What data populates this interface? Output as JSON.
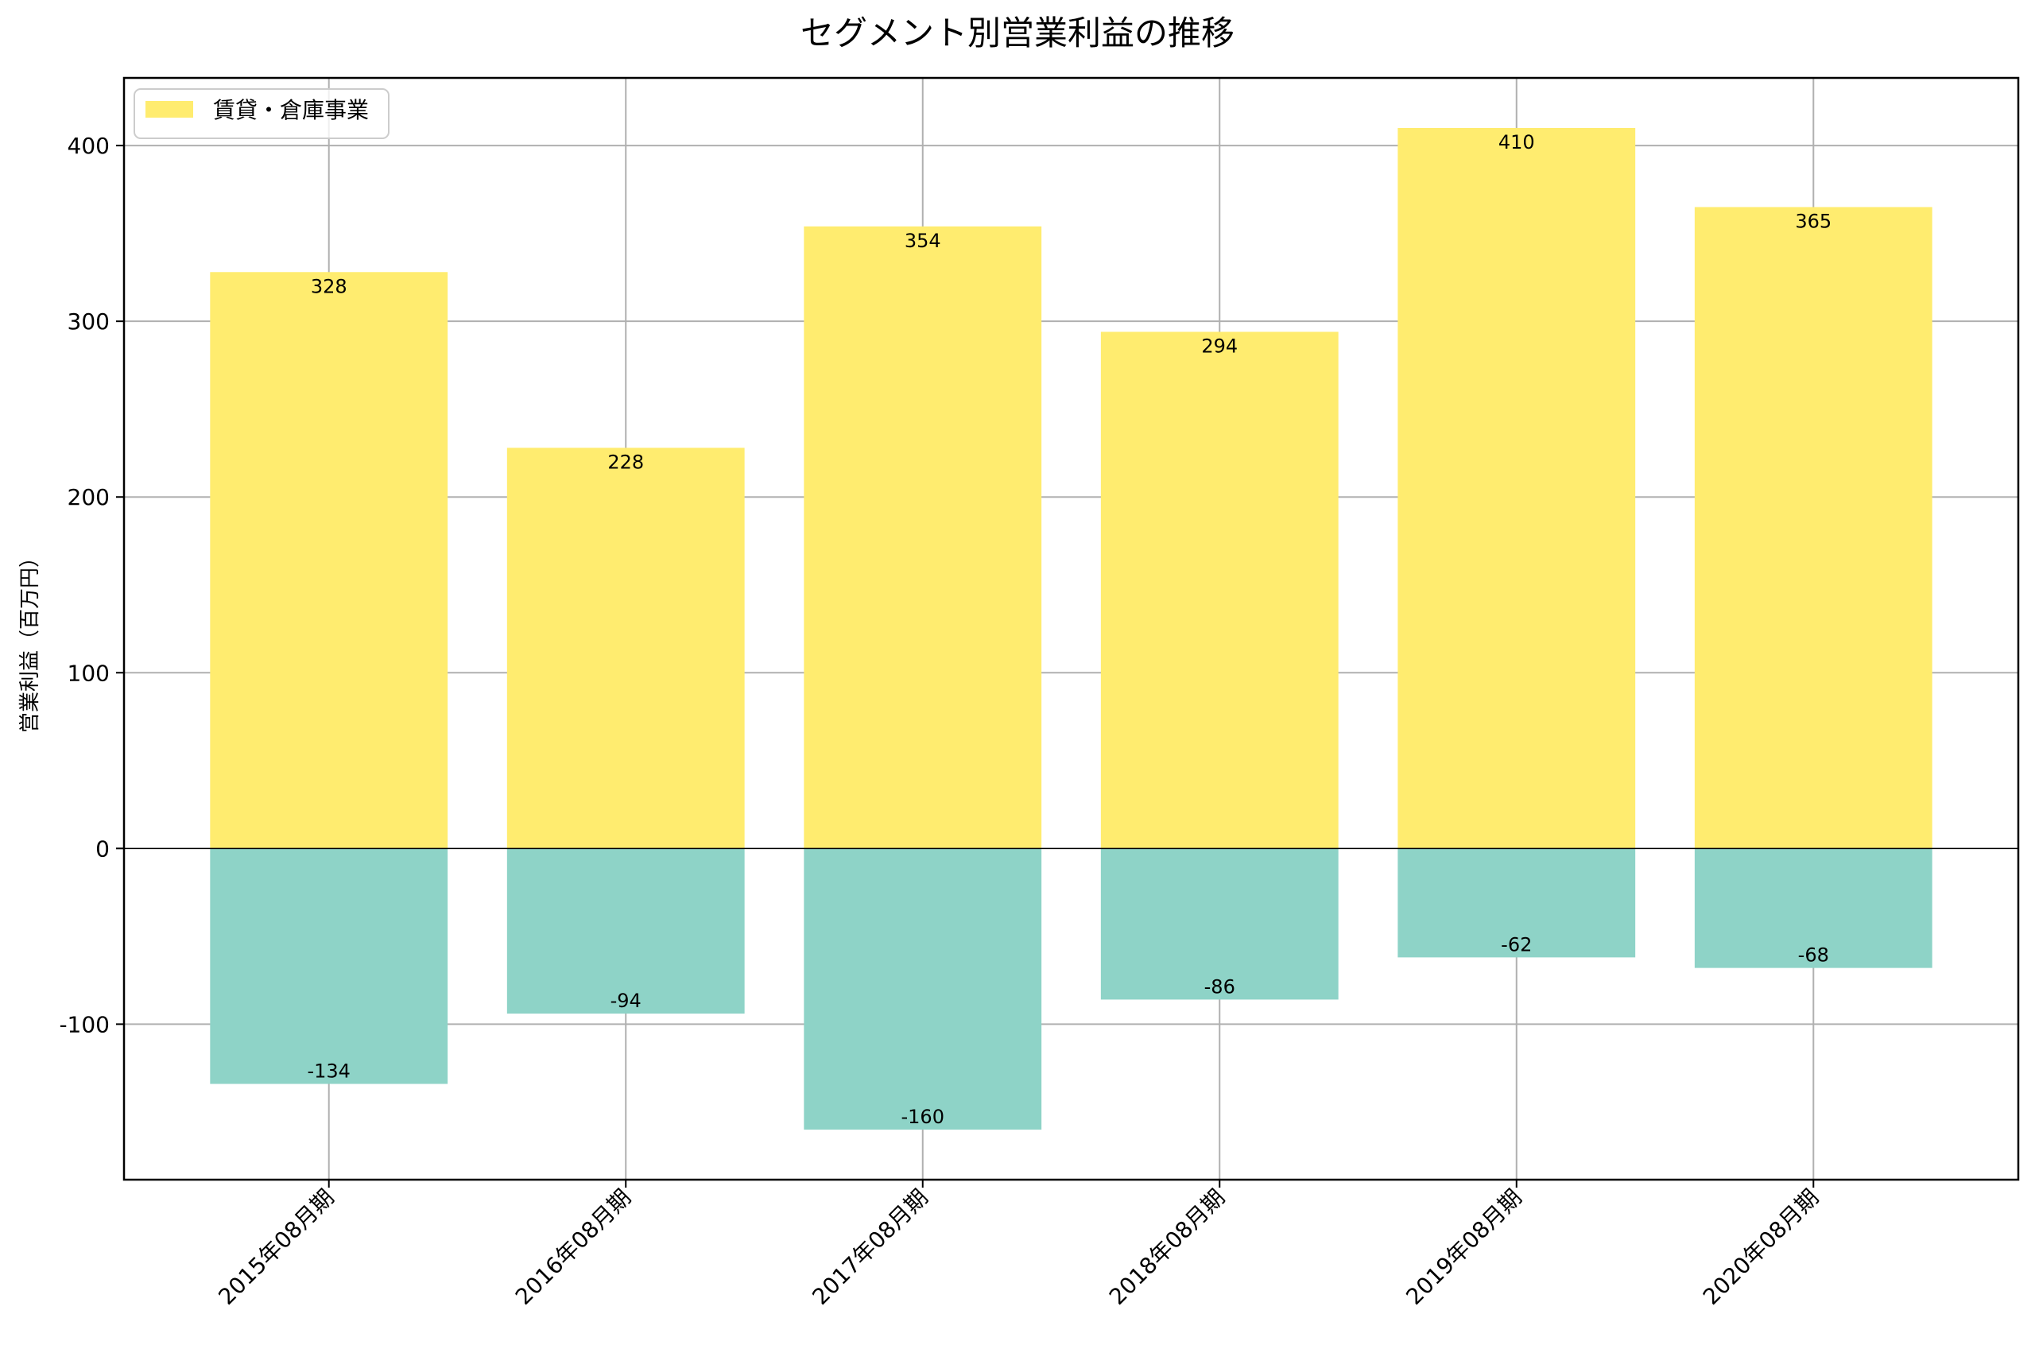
{
  "chart_data": {
    "type": "bar",
    "title": "セグメント別営業利益の推移",
    "xlabel": "",
    "ylabel": "営業利益（百万円）",
    "categories": [
      "2015年08月期",
      "2016年08月期",
      "2017年08月期",
      "2018年08月期",
      "2019年08月期",
      "2020年08月期"
    ],
    "series": [
      {
        "name": "賃貸・倉庫事業",
        "values": [
          328,
          228,
          354,
          294,
          410,
          365
        ],
        "color": "#ffec6f",
        "in_legend": true
      },
      {
        "name": "",
        "values": [
          -134,
          -94,
          -160,
          -86,
          -62,
          -68
        ],
        "color": "#8ed3c7",
        "in_legend": false
      }
    ],
    "ylim": [
      -188.5,
      438.5
    ],
    "yticks": [
      -100,
      0,
      100,
      200,
      300,
      400
    ],
    "grid": true,
    "legend_position": "upper left",
    "x_tick_rotation": 45
  }
}
